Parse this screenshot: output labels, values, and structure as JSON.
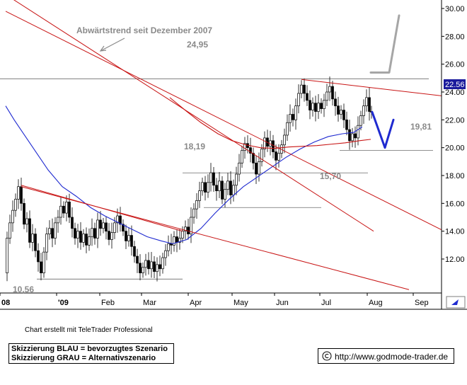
{
  "chart_data": {
    "type": "candlestick",
    "title": "",
    "xlabel": "",
    "ylabel": "",
    "ylim": [
      10.3,
      30.6
    ],
    "x_ticks": [
      "08",
      "'09",
      "Feb",
      "Mar",
      "Apr",
      "May",
      "Jun",
      "Jul",
      "Aug",
      "Sep"
    ],
    "y_ticks": [
      "12.00",
      "14.00",
      "16.00",
      "18.00",
      "20.00",
      "22.00",
      "24.00",
      "26.00",
      "28.00",
      "30.00"
    ],
    "last_price": "22.56",
    "annotations": {
      "downtrend_label": "Abwärtstrend seit Dezember 2007",
      "level_2495": "24,95",
      "level_1981": "19,81",
      "level_1819": "18,19",
      "level_1570": "15,70",
      "level_1056": "10,56"
    },
    "horizontal_levels": [
      24.95,
      19.81,
      18.19,
      15.7,
      10.56
    ],
    "series": [
      {
        "name": "price",
        "type": "candlestick",
        "path": [
          [
            0,
            11.0
          ],
          [
            4,
            13.5
          ],
          [
            8,
            14.6
          ],
          [
            12,
            15.5
          ],
          [
            16,
            16.3
          ],
          [
            20,
            17.2
          ],
          [
            24,
            16.0
          ],
          [
            28,
            14.5
          ],
          [
            32,
            14.9
          ],
          [
            36,
            13.2
          ],
          [
            40,
            13.8
          ],
          [
            44,
            12.6
          ],
          [
            48,
            11.8
          ],
          [
            52,
            11.0
          ],
          [
            56,
            12.5
          ],
          [
            60,
            13.8
          ],
          [
            64,
            14.2
          ],
          [
            68,
            13.5
          ],
          [
            72,
            14.6
          ],
          [
            76,
            15.0
          ],
          [
            80,
            15.8
          ],
          [
            84,
            15.3
          ],
          [
            88,
            16.1
          ],
          [
            92,
            15.0
          ],
          [
            96,
            14.2
          ],
          [
            100,
            13.5
          ],
          [
            104,
            14.0
          ],
          [
            108,
            13.2
          ],
          [
            112,
            13.8
          ],
          [
            116,
            13.0
          ],
          [
            120,
            13.6
          ],
          [
            124,
            14.2
          ],
          [
            128,
            13.5
          ],
          [
            132,
            14.8
          ],
          [
            136,
            14.2
          ],
          [
            140,
            14.6
          ],
          [
            144,
            14.0
          ],
          [
            148,
            13.4
          ],
          [
            152,
            13.9
          ],
          [
            156,
            14.6
          ],
          [
            160,
            15.1
          ],
          [
            164,
            14.5
          ],
          [
            168,
            14.0
          ],
          [
            172,
            13.3
          ],
          [
            176,
            13.7
          ],
          [
            180,
            12.9
          ],
          [
            184,
            12.2
          ],
          [
            188,
            11.7
          ],
          [
            192,
            11.0
          ],
          [
            196,
            11.4
          ],
          [
            200,
            11.9
          ],
          [
            204,
            11.3
          ],
          [
            208,
            11.8
          ],
          [
            212,
            11.1
          ],
          [
            216,
            11.6
          ],
          [
            220,
            11.3
          ],
          [
            224,
            12.1
          ],
          [
            228,
            12.6
          ],
          [
            232,
            13.1
          ],
          [
            236,
            13.0
          ],
          [
            240,
            13.6
          ],
          [
            244,
            13.2
          ],
          [
            248,
            13.5
          ],
          [
            252,
            14.0
          ],
          [
            256,
            14.3
          ],
          [
            260,
            13.8
          ],
          [
            264,
            15.0
          ],
          [
            268,
            15.6
          ],
          [
            272,
            16.2
          ],
          [
            276,
            16.9
          ],
          [
            280,
            17.5
          ],
          [
            284,
            16.8
          ],
          [
            288,
            17.5
          ],
          [
            292,
            18.2
          ],
          [
            296,
            17.3
          ],
          [
            300,
            16.9
          ],
          [
            304,
            17.6
          ],
          [
            308,
            16.3
          ],
          [
            312,
            17.0
          ],
          [
            316,
            17.6
          ],
          [
            320,
            16.6
          ],
          [
            324,
            17.3
          ],
          [
            328,
            18.1
          ],
          [
            332,
            18.9
          ],
          [
            336,
            19.8
          ],
          [
            340,
            20.3
          ],
          [
            344,
            20.0
          ],
          [
            348,
            19.6
          ],
          [
            352,
            18.9
          ],
          [
            356,
            18.1
          ],
          [
            360,
            19.0
          ],
          [
            364,
            19.9
          ],
          [
            368,
            20.7
          ],
          [
            372,
            20.1
          ],
          [
            376,
            20.5
          ],
          [
            380,
            19.7
          ],
          [
            384,
            19.1
          ],
          [
            388,
            19.6
          ],
          [
            392,
            20.2
          ],
          [
            396,
            20.9
          ],
          [
            400,
            21.8
          ],
          [
            404,
            22.4
          ],
          [
            408,
            22.0
          ],
          [
            412,
            23.0
          ],
          [
            416,
            23.9
          ],
          [
            420,
            24.5
          ],
          [
            424,
            23.9
          ],
          [
            428,
            23.4
          ],
          [
            432,
            22.7
          ],
          [
            436,
            23.2
          ],
          [
            440,
            22.6
          ],
          [
            444,
            23.2
          ],
          [
            448,
            22.8
          ],
          [
            452,
            23.4
          ],
          [
            456,
            24.0
          ],
          [
            460,
            24.4
          ],
          [
            464,
            23.5
          ],
          [
            468,
            23.0
          ],
          [
            472,
            22.4
          ],
          [
            476,
            22.7
          ],
          [
            480,
            22.0
          ],
          [
            484,
            21.3
          ],
          [
            488,
            20.5
          ],
          [
            492,
            21.0
          ],
          [
            496,
            20.7
          ],
          [
            500,
            21.6
          ],
          [
            504,
            22.3
          ],
          [
            508,
            23.0
          ],
          [
            512,
            23.6
          ],
          [
            516,
            22.6
          ],
          [
            518,
            22.56
          ]
        ]
      },
      {
        "name": "moving_average_blue",
        "type": "line",
        "color": "#1f2ad0",
        "path": [
          [
            0,
            23.0
          ],
          [
            12,
            22.0
          ],
          [
            24,
            21.1
          ],
          [
            40,
            19.9
          ],
          [
            60,
            18.4
          ],
          [
            80,
            17.2
          ],
          [
            100,
            16.5
          ],
          [
            120,
            15.7
          ],
          [
            140,
            15.1
          ],
          [
            160,
            14.6
          ],
          [
            180,
            14.1
          ],
          [
            200,
            13.6
          ],
          [
            220,
            13.3
          ],
          [
            236,
            13.1
          ],
          [
            256,
            13.4
          ],
          [
            276,
            14.2
          ],
          [
            296,
            15.3
          ],
          [
            316,
            16.3
          ],
          [
            336,
            17.2
          ],
          [
            356,
            17.9
          ],
          [
            376,
            18.6
          ],
          [
            396,
            19.3
          ],
          [
            416,
            19.9
          ],
          [
            436,
            20.4
          ],
          [
            456,
            20.8
          ],
          [
            476,
            21.0
          ],
          [
            492,
            21.1
          ],
          [
            504,
            21.5
          ]
        ]
      },
      {
        "name": "moving_average_red",
        "type": "line",
        "color": "#c81414",
        "path": [
          [
            232,
            23.6
          ],
          [
            256,
            22.6
          ],
          [
            276,
            21.8
          ],
          [
            300,
            21.0
          ],
          [
            320,
            20.5
          ],
          [
            340,
            20.2
          ],
          [
            360,
            20.0
          ],
          [
            380,
            19.95
          ],
          [
            400,
            20.05
          ],
          [
            420,
            20.1
          ],
          [
            440,
            20.15
          ],
          [
            460,
            20.25
          ],
          [
            480,
            20.35
          ],
          [
            500,
            20.5
          ],
          [
            516,
            20.6
          ]
        ]
      }
    ],
    "trendlines": [
      {
        "name": "red-downtrend-upper",
        "color": "#c81414",
        "points": [
          [
            0,
            31.0
          ],
          [
            520,
            14.0
          ]
        ]
      },
      {
        "name": "red-downtrend-upper-b",
        "color": "#c81414",
        "points": [
          [
            0,
            29.8
          ],
          [
            620,
            14.0
          ]
        ]
      },
      {
        "name": "red-lower-channel",
        "color": "#c81414",
        "points": [
          [
            22,
            17.2
          ],
          [
            570,
            9.8
          ]
        ]
      },
      {
        "name": "red-upper-channel",
        "color": "#c81414",
        "points": [
          [
            22,
            17.3
          ],
          [
            250,
            14.0
          ]
        ]
      },
      {
        "name": "red-triangle-top",
        "color": "#c81414",
        "points": [
          [
            418,
            24.9
          ],
          [
            620,
            23.7
          ]
        ]
      }
    ],
    "scenarios": [
      {
        "name": "blue-scenario",
        "color": "#1f2ad0",
        "points": [
          [
            518,
            22.56
          ],
          [
            536,
            20.0
          ],
          [
            548,
            22.0
          ]
        ]
      },
      {
        "name": "grey-scenario",
        "color": "#a6a6a6",
        "points": [
          [
            516,
            25.4
          ],
          [
            542,
            25.4
          ],
          [
            556,
            29.5
          ]
        ]
      }
    ]
  },
  "credit_text": "Chart erstellt mit TeleTrader Professional",
  "legend": {
    "line1": "Skizzierung BLAU = bevorzugtes Szenario",
    "line2": "Skizzierung GRAU = Alternativszenario"
  },
  "url_text": "http://www.godmode-trader.de",
  "colors": {
    "red": "#c81414",
    "blue": "#1f2ad0",
    "grey": "#8a8a8a",
    "axis_bg": "#ffffff",
    "price_box": "#1b1b9c"
  }
}
